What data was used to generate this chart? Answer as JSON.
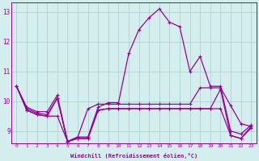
{
  "xlabel": "Windchill (Refroidissement éolien,°C)",
  "background_color": "#d4eeee",
  "line_color": "#990099",
  "grid_color": "#aacccc",
  "xlim": [
    -0.5,
    23.5
  ],
  "ylim": [
    8.6,
    13.3
  ],
  "xticks": [
    0,
    1,
    2,
    3,
    4,
    5,
    6,
    7,
    8,
    9,
    10,
    11,
    12,
    13,
    14,
    15,
    16,
    17,
    18,
    19,
    20,
    21,
    22,
    23
  ],
  "yticks": [
    9,
    10,
    11,
    12,
    13
  ],
  "lines": [
    [
      10.5,
      9.8,
      9.65,
      9.65,
      10.2,
      8.65,
      8.8,
      8.8,
      9.8,
      9.95,
      9.95,
      11.6,
      12.4,
      12.8,
      13.1,
      12.65,
      12.5,
      11.0,
      11.5,
      10.5,
      10.5,
      9.0,
      8.9,
      9.2
    ],
    [
      10.5,
      9.75,
      9.6,
      9.55,
      10.1,
      8.65,
      8.8,
      9.75,
      9.9,
      9.9,
      9.9,
      9.9,
      9.9,
      9.9,
      9.9,
      9.9,
      9.9,
      9.9,
      10.45,
      10.45,
      10.45,
      9.85,
      9.25,
      9.15
    ],
    [
      10.5,
      9.7,
      9.55,
      9.5,
      9.5,
      8.65,
      8.75,
      8.75,
      9.7,
      9.75,
      9.75,
      9.75,
      9.75,
      9.75,
      9.75,
      9.75,
      9.75,
      9.75,
      9.75,
      9.75,
      9.75,
      8.85,
      8.75,
      9.1
    ],
    [
      10.5,
      9.7,
      9.55,
      9.5,
      10.1,
      8.65,
      8.75,
      8.75,
      9.7,
      9.75,
      9.75,
      9.75,
      9.75,
      9.75,
      9.75,
      9.75,
      9.75,
      9.75,
      9.75,
      9.75,
      10.4,
      8.85,
      8.75,
      9.15
    ]
  ]
}
